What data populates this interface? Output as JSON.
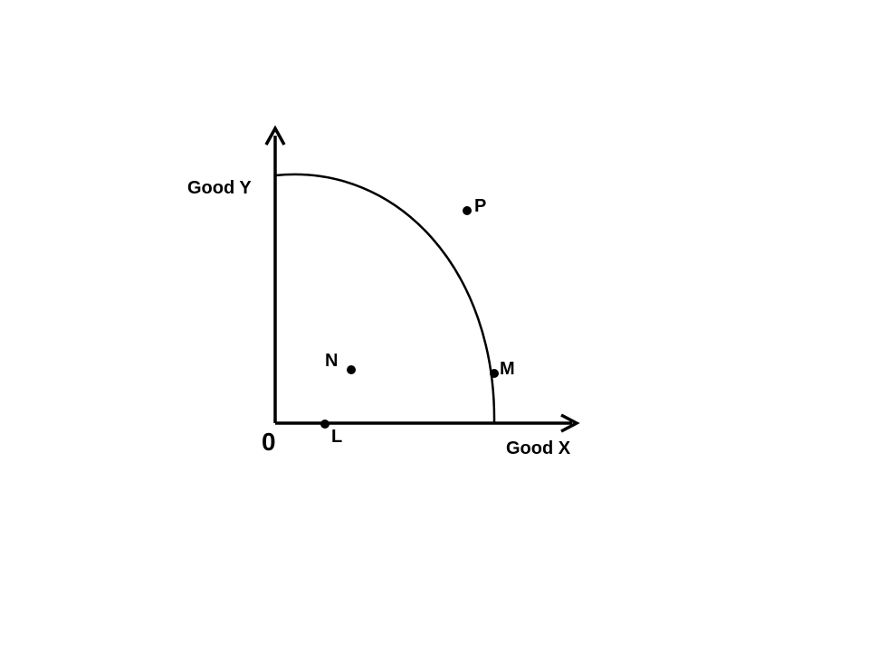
{
  "diagram": {
    "axes": {
      "y_label": "Good Y",
      "x_label": "Good X",
      "origin_label": "0"
    },
    "points": [
      {
        "id": "P",
        "label": "P"
      },
      {
        "id": "M",
        "label": "M"
      },
      {
        "id": "N",
        "label": "N"
      },
      {
        "id": "L",
        "label": "L"
      }
    ],
    "colors": {
      "ink": "#000000",
      "background": "#ffffff"
    }
  }
}
